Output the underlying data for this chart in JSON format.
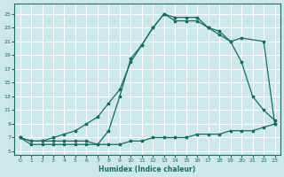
{
  "xlabel": "Humidex (Indice chaleur)",
  "background_color": "#cce8e8",
  "grid_color": "#ffffff",
  "line_color": "#1a6e5e",
  "xlim": [
    -0.5,
    23.5
  ],
  "ylim": [
    4.5,
    26.5
  ],
  "xticks": [
    0,
    1,
    2,
    3,
    4,
    5,
    6,
    7,
    8,
    9,
    10,
    11,
    12,
    13,
    14,
    15,
    16,
    17,
    18,
    19,
    20,
    21,
    22,
    23
  ],
  "yticks": [
    5,
    7,
    9,
    11,
    13,
    15,
    17,
    19,
    21,
    23,
    25
  ],
  "line1_x": [
    0,
    1,
    2,
    3,
    4,
    5,
    6,
    7,
    8,
    9,
    10,
    11,
    12,
    13,
    14,
    15,
    16,
    17,
    18,
    19,
    20,
    21,
    22,
    23
  ],
  "line1_y": [
    7.0,
    6.0,
    6.0,
    6.0,
    6.0,
    6.0,
    6.0,
    6.0,
    6.0,
    6.0,
    6.5,
    6.5,
    7.0,
    7.0,
    7.0,
    7.0,
    7.5,
    7.5,
    7.5,
    8.0,
    8.0,
    8.0,
    8.5,
    9.0
  ],
  "line2_x": [
    0,
    1,
    2,
    3,
    4,
    5,
    6,
    7,
    8,
    9,
    10,
    11,
    12,
    13,
    14,
    15,
    16,
    17,
    18,
    19,
    20,
    21,
    22,
    23
  ],
  "line2_y": [
    7.0,
    6.5,
    6.5,
    7.0,
    7.5,
    8.0,
    9.0,
    10.0,
    12.0,
    14.0,
    18.0,
    20.5,
    23.0,
    25.0,
    24.0,
    24.0,
    24.0,
    23.0,
    22.5,
    21.0,
    18.0,
    13.0,
    11.0,
    9.5
  ],
  "line3_x": [
    0,
    1,
    2,
    3,
    4,
    5,
    6,
    7,
    8,
    9,
    10,
    11,
    12,
    13,
    14,
    15,
    16,
    17,
    18,
    19,
    20,
    22,
    23
  ],
  "line3_y": [
    7.0,
    6.5,
    6.5,
    6.5,
    6.5,
    6.5,
    6.5,
    6.0,
    8.0,
    13.0,
    18.5,
    20.5,
    23.0,
    25.0,
    24.5,
    24.5,
    24.5,
    23.0,
    22.0,
    21.0,
    21.5,
    21.0,
    9.0
  ]
}
